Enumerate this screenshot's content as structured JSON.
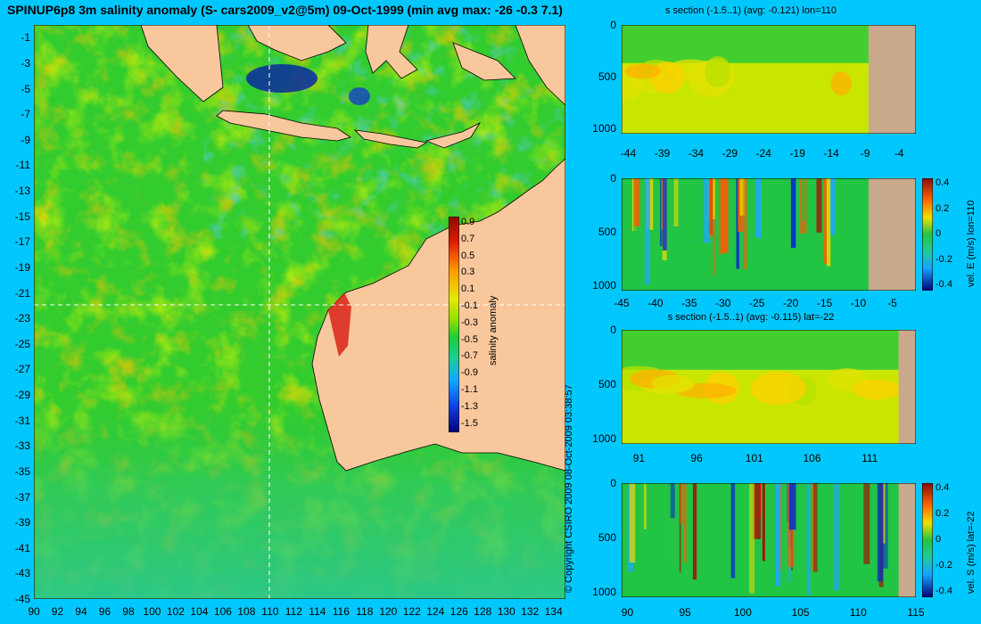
{
  "title": "SPINUP6p8 3m salinity anomaly (S- cars2009_v2@5m) 09-Oct-1999 (min avg max: -26 -0.3 7.1)",
  "copyright": "© Copyright CSIRO 2009   08-Oct-2009 03:38:57",
  "colors": {
    "background": "#00c8ff",
    "land": "#f9c79c",
    "section_land": "#c9a98b",
    "crosshair": "#ffffff"
  },
  "chart_data": [
    {
      "type": "heatmap",
      "name": "map",
      "xlim": [
        90,
        135
      ],
      "ylim": [
        -45,
        0
      ],
      "x_ticks": [
        "90",
        "92",
        "94",
        "96",
        "98",
        "100",
        "102",
        "104",
        "106",
        "108",
        "110",
        "112",
        "114",
        "116",
        "118",
        "120",
        "122",
        "124",
        "126",
        "128",
        "130",
        "132",
        "134"
      ],
      "y_ticks": [
        "-1",
        "-3",
        "-5",
        "-7",
        "-9",
        "-11",
        "-13",
        "-15",
        "-17",
        "-19",
        "-21",
        "-23",
        "-25",
        "-27",
        "-29",
        "-31",
        "-33",
        "-35",
        "-37",
        "-39",
        "-41",
        "-43",
        "-45"
      ],
      "crosshair": {
        "lon": 110,
        "lat": -22
      },
      "colorbar": {
        "label": "salinity anomaly",
        "ticks": [
          "0.9",
          "0.7",
          "0.5",
          "0.3",
          "0.1",
          "-0.1",
          "-0.3",
          "-0.5",
          "-0.7",
          "-0.9",
          "-1.1",
          "-1.3",
          "-1.5"
        ]
      }
    },
    {
      "type": "heatmap",
      "name": "s-section-lon",
      "title": "s section (-1.5..1) (avg: -0.121) lon=110",
      "x_ticks": [
        "-44",
        "-39",
        "-34",
        "-29",
        "-24",
        "-19",
        "-14",
        "-9",
        "-4"
      ],
      "xlim": [
        -45,
        -1.5
      ],
      "y_ticks": [
        "0",
        "500",
        "1000"
      ],
      "ylim": [
        0,
        1050
      ],
      "land_from": -8.5
    },
    {
      "type": "heatmap",
      "name": "vel-e-lon",
      "title": "",
      "x_ticks": [
        "-45",
        "-40",
        "-35",
        "-30",
        "-25",
        "-20",
        "-15",
        "-10",
        "-5"
      ],
      "xlim": [
        -45,
        -1.5
      ],
      "y_ticks": [
        "0",
        "500",
        "1000"
      ],
      "ylim": [
        0,
        1050
      ],
      "land_from": -8.5,
      "colorbar": {
        "label": "vel. E (m/s) lon=110",
        "ticks": [
          "0.4",
          "0.2",
          "0",
          "-0.2",
          "-0.4"
        ]
      }
    },
    {
      "type": "heatmap",
      "name": "s-section-lat",
      "title": "s section (-1.5..1) (avg: -0.115) lat=-22",
      "x_ticks": [
        "91",
        "96",
        "101",
        "106",
        "111"
      ],
      "xlim": [
        89.5,
        115
      ],
      "y_ticks": [
        "0",
        "500",
        "1000"
      ],
      "ylim": [
        0,
        1050
      ],
      "land_from": 113.5
    },
    {
      "type": "heatmap",
      "name": "vel-s-lat",
      "title": "",
      "x_ticks": [
        "90",
        "95",
        "100",
        "105",
        "110",
        "115"
      ],
      "xlim": [
        89.5,
        115
      ],
      "y_ticks": [
        "0",
        "500",
        "1000"
      ],
      "ylim": [
        0,
        1050
      ],
      "land_from": 113.5,
      "colorbar": {
        "label": "vel. S (m/s) lat=-22",
        "ticks": [
          "0.4",
          "0.2",
          "0",
          "-0.2",
          "-0.4"
        ]
      }
    }
  ]
}
